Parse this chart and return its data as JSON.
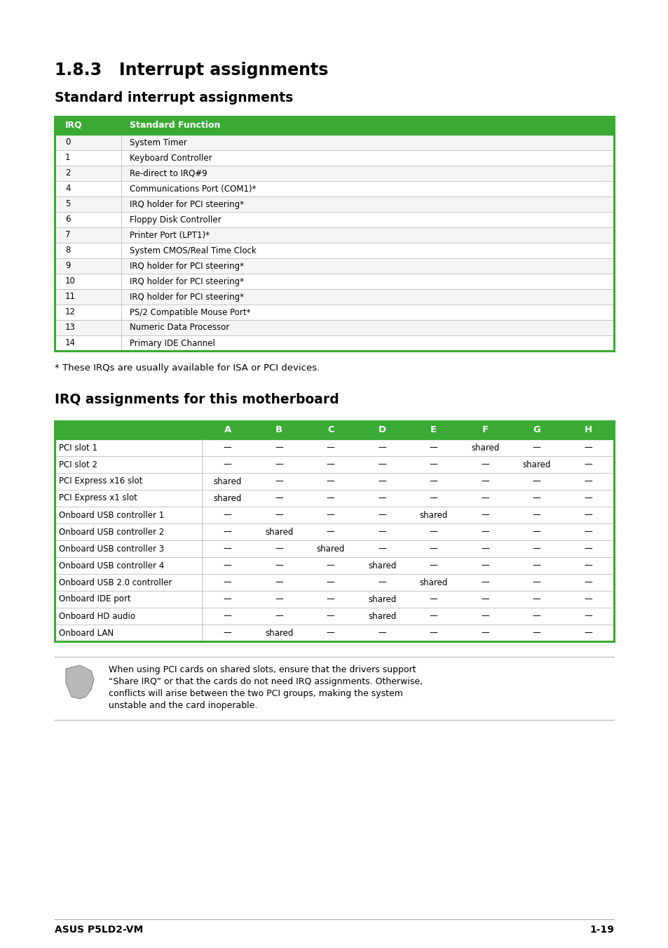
{
  "bg_color": "#ffffff",
  "section_title_1": "1.8.3",
  "section_title_2": "Interrupt assignments",
  "subsection1_title": "Standard interrupt assignments",
  "subsection2_title": "IRQ assignments for this motherboard",
  "table1_header": [
    "IRQ",
    "Standard Function"
  ],
  "table1_header_bg": "#3aaa35",
  "table1_header_color": "#ffffff",
  "table1_rows": [
    [
      "0",
      "System Timer"
    ],
    [
      "1",
      "Keyboard Controller"
    ],
    [
      "2",
      "Re-direct to IRQ#9"
    ],
    [
      "4",
      "Communications Port (COM1)*"
    ],
    [
      "5",
      "IRQ holder for PCI steering*"
    ],
    [
      "6",
      "Floppy Disk Controller"
    ],
    [
      "7",
      "Printer Port (LPT1)*"
    ],
    [
      "8",
      "System CMOS/Real Time Clock"
    ],
    [
      "9",
      "IRQ holder for PCI steering*"
    ],
    [
      "10",
      "IRQ holder for PCI steering*"
    ],
    [
      "11",
      "IRQ holder for PCI steering*"
    ],
    [
      "12",
      "PS/2 Compatible Mouse Port*"
    ],
    [
      "13",
      "Numeric Data Processor"
    ],
    [
      "14",
      "Primary IDE Channel"
    ]
  ],
  "table1_border_color": "#3aaa35",
  "footnote": "* These IRQs are usually available for ISA or PCI devices.",
  "table2_col_headers": [
    "A",
    "B",
    "C",
    "D",
    "E",
    "F",
    "G",
    "H"
  ],
  "table2_header_bg": "#3aaa35",
  "table2_rows": [
    [
      "PCI slot 1",
      "—",
      "—",
      "—",
      "—",
      "—",
      "shared",
      "—",
      "—"
    ],
    [
      "PCI slot 2",
      "—",
      "—",
      "—",
      "—",
      "—",
      "—",
      "shared",
      "—"
    ],
    [
      "PCI Express x16 slot",
      "shared",
      "—",
      "—",
      "—",
      "—",
      "—",
      "—",
      "—"
    ],
    [
      "PCI Express x1 slot",
      "shared",
      "—",
      "—",
      "—",
      "—",
      "—",
      "—",
      "—"
    ],
    [
      "Onboard USB controller 1",
      "—",
      "—",
      "—",
      "—",
      "shared",
      "—",
      "—",
      "—"
    ],
    [
      "Onboard USB controller 2",
      "—",
      "shared",
      "—",
      "—",
      "—",
      "—",
      "—",
      "—"
    ],
    [
      "Onboard USB controller 3",
      "—",
      "—",
      "shared",
      "—",
      "—",
      "—",
      "—",
      "—"
    ],
    [
      "Onboard USB controller 4",
      "—",
      "—",
      "—",
      "shared",
      "—",
      "—",
      "—",
      "—"
    ],
    [
      "Onboard USB 2.0 controller",
      "—",
      "—",
      "—",
      "—",
      "shared",
      "—",
      "—",
      "—"
    ],
    [
      "Onboard IDE port",
      "—",
      "—",
      "—",
      "shared",
      "—",
      "—",
      "—",
      "—"
    ],
    [
      "Onboard HD audio",
      "—",
      "—",
      "—",
      "shared",
      "—",
      "—",
      "—",
      "—"
    ],
    [
      "Onboard LAN",
      "—",
      "shared",
      "—",
      "—",
      "—",
      "—",
      "—",
      "—"
    ]
  ],
  "note_line1": "When using PCI cards on shared slots, ensure that the drivers support",
  "note_line2": "“Share IRQ” or that the cards do not need IRQ assignments. Otherwise,",
  "note_line3": "conflicts will arise between the two PCI groups, making the system",
  "note_line4": "unstable and the card inoperable.",
  "footer_left": "ASUS P5LD2-VM",
  "footer_right": "1-19"
}
